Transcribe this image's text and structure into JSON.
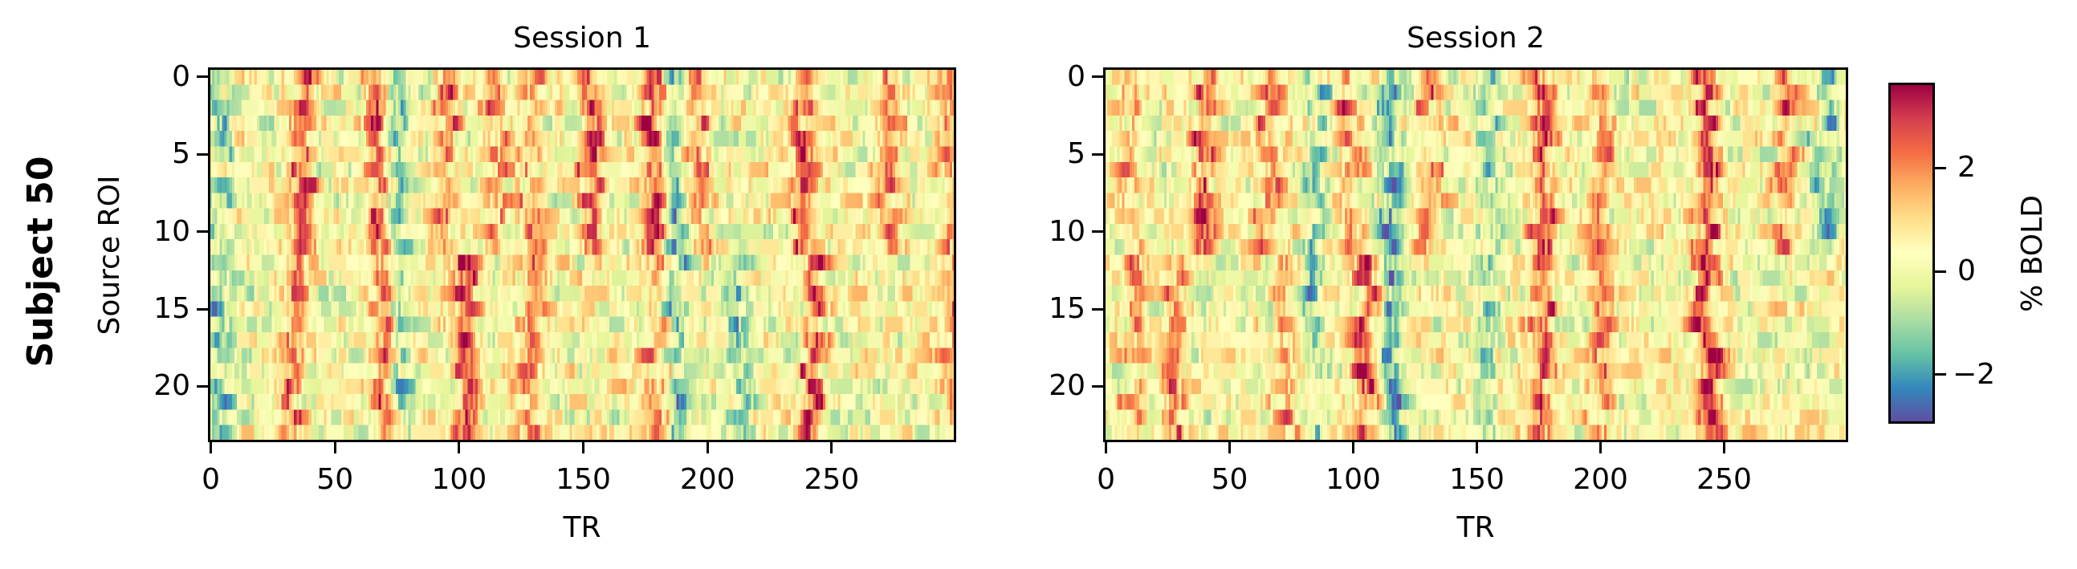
{
  "figure": {
    "suptitle": "Subject 50",
    "colormap": "Spectral_r",
    "colorbar": {
      "label": "% BOLD",
      "vmin": -2.9,
      "vmax": 3.6,
      "ticks": [
        {
          "value": 2,
          "label": "2"
        },
        {
          "value": 0,
          "label": "0"
        },
        {
          "value": -2,
          "label": "−2"
        }
      ],
      "colors": [
        "#5e4fa2",
        "#3288bd",
        "#66c2a5",
        "#abdda4",
        "#e6f598",
        "#ffffbf",
        "#fee08b",
        "#fdae61",
        "#f46d43",
        "#d53e4f",
        "#9e0142"
      ]
    }
  },
  "panels": [
    {
      "title": "Session 1",
      "ylabel": "Source ROI",
      "xlabel": "TR",
      "xticks": [
        {
          "value": 0,
          "label": "0"
        },
        {
          "value": 50,
          "label": "50"
        },
        {
          "value": 100,
          "label": "100"
        },
        {
          "value": 150,
          "label": "150"
        },
        {
          "value": 200,
          "label": "200"
        },
        {
          "value": 250,
          "label": "250"
        }
      ],
      "yticks": [
        {
          "value": 0,
          "label": "0"
        },
        {
          "value": 5,
          "label": "5"
        },
        {
          "value": 10,
          "label": "10"
        },
        {
          "value": 15,
          "label": "15"
        },
        {
          "value": 20,
          "label": "20"
        }
      ]
    },
    {
      "title": "Session 2",
      "ylabel": "",
      "xlabel": "TR",
      "xticks": [
        {
          "value": 0,
          "label": "0"
        },
        {
          "value": 50,
          "label": "50"
        },
        {
          "value": 100,
          "label": "100"
        },
        {
          "value": 150,
          "label": "150"
        },
        {
          "value": 200,
          "label": "200"
        },
        {
          "value": 250,
          "label": "250"
        }
      ],
      "yticks": [
        {
          "value": 0,
          "label": "0"
        },
        {
          "value": 5,
          "label": "5"
        },
        {
          "value": 10,
          "label": "10"
        },
        {
          "value": 15,
          "label": "15"
        },
        {
          "value": 20,
          "label": "20"
        }
      ]
    }
  ],
  "chart_data": {
    "type": "heatmap",
    "title": "Subject 50",
    "subplots": [
      {
        "title": "Session 1",
        "xlabel": "TR",
        "ylabel": "Source ROI",
        "x_range": [
          0,
          299
        ],
        "y_range": [
          0,
          23
        ],
        "n_rows": 24,
        "n_cols": 300,
        "xticks": [
          0,
          50,
          100,
          150,
          200,
          250
        ],
        "yticks": [
          0,
          5,
          10,
          15,
          20
        ],
        "y_inverted": true,
        "positive_bands_TR": [
          {
            "center": 37,
            "rows": [
              0,
              11
            ],
            "peak": 2.6
          },
          {
            "center": 33,
            "rows": [
              12,
              23
            ],
            "peak": 2.2
          },
          {
            "center": 67,
            "rows": [
              0,
              11
            ],
            "peak": 2.4
          },
          {
            "center": 70,
            "rows": [
              12,
              23
            ],
            "peak": 2.2
          },
          {
            "center": 95,
            "rows": [
              0,
              11
            ],
            "peak": 2.2
          },
          {
            "center": 103,
            "rows": [
              12,
              23
            ],
            "peak": 3.0
          },
          {
            "center": 115,
            "rows": [
              0,
              11
            ],
            "peak": 2.0
          },
          {
            "center": 130,
            "rows": [
              0,
              23
            ],
            "peak": 1.8
          },
          {
            "center": 153,
            "rows": [
              0,
              11
            ],
            "peak": 2.4
          },
          {
            "center": 178,
            "rows": [
              0,
              11
            ],
            "peak": 3.2
          },
          {
            "center": 180,
            "rows": [
              12,
              23
            ],
            "peak": 2.0
          },
          {
            "center": 196,
            "rows": [
              0,
              11
            ],
            "peak": 2.2
          },
          {
            "center": 238,
            "rows": [
              0,
              11
            ],
            "peak": 2.6
          },
          {
            "center": 243,
            "rows": [
              12,
              23
            ],
            "peak": 2.8
          },
          {
            "center": 273,
            "rows": [
              0,
              11
            ],
            "peak": 2.0
          },
          {
            "center": 298,
            "rows": [
              0,
              23
            ],
            "peak": 1.8
          }
        ],
        "negative_bands_TR": [
          {
            "center": 3,
            "rows": [
              0,
              23
            ],
            "peak": -1.5
          },
          {
            "center": 76,
            "rows": [
              0,
              23
            ],
            "peak": -1.6
          },
          {
            "center": 187,
            "rows": [
              0,
              23
            ],
            "peak": -2.0
          },
          {
            "center": 213,
            "rows": [
              12,
              23
            ],
            "peak": -1.8
          }
        ]
      },
      {
        "title": "Session 2",
        "xlabel": "TR",
        "ylabel": "",
        "x_range": [
          0,
          299
        ],
        "y_range": [
          0,
          23
        ],
        "n_rows": 24,
        "n_cols": 300,
        "xticks": [
          0,
          50,
          100,
          150,
          200,
          250
        ],
        "yticks": [
          0,
          5,
          10,
          15,
          20
        ],
        "y_inverted": true,
        "positive_bands_TR": [
          {
            "center": 10,
            "rows": [
              0,
              23
            ],
            "peak": 1.4
          },
          {
            "center": 40,
            "rows": [
              0,
              11
            ],
            "peak": 2.4
          },
          {
            "center": 28,
            "rows": [
              12,
              23
            ],
            "peak": 2.2
          },
          {
            "center": 66,
            "rows": [
              0,
              11
            ],
            "peak": 2.0
          },
          {
            "center": 75,
            "rows": [
              12,
              23
            ],
            "peak": 1.6
          },
          {
            "center": 98,
            "rows": [
              0,
              11
            ],
            "peak": 1.8
          },
          {
            "center": 105,
            "rows": [
              12,
              23
            ],
            "peak": 2.8
          },
          {
            "center": 130,
            "rows": [
              0,
              11
            ],
            "peak": 1.8
          },
          {
            "center": 177,
            "rows": [
              0,
              23
            ],
            "peak": 2.6
          },
          {
            "center": 200,
            "rows": [
              0,
              23
            ],
            "peak": 1.8
          },
          {
            "center": 243,
            "rows": [
              0,
              23
            ],
            "peak": 3.2
          },
          {
            "center": 275,
            "rows": [
              0,
              11
            ],
            "peak": 2.0
          }
        ],
        "negative_bands_TR": [
          {
            "center": 85,
            "rows": [
              0,
              23
            ],
            "peak": -1.4
          },
          {
            "center": 115,
            "rows": [
              0,
              23
            ],
            "peak": -2.4
          },
          {
            "center": 155,
            "rows": [
              0,
              23
            ],
            "peak": -1.4
          },
          {
            "center": 290,
            "rows": [
              0,
              11
            ],
            "peak": -1.8
          }
        ]
      }
    ],
    "colorbar": {
      "label": "% BOLD",
      "range": [
        -2.9,
        3.6
      ],
      "ticks": [
        -2,
        0,
        2
      ]
    },
    "legend": null,
    "grid": false
  }
}
